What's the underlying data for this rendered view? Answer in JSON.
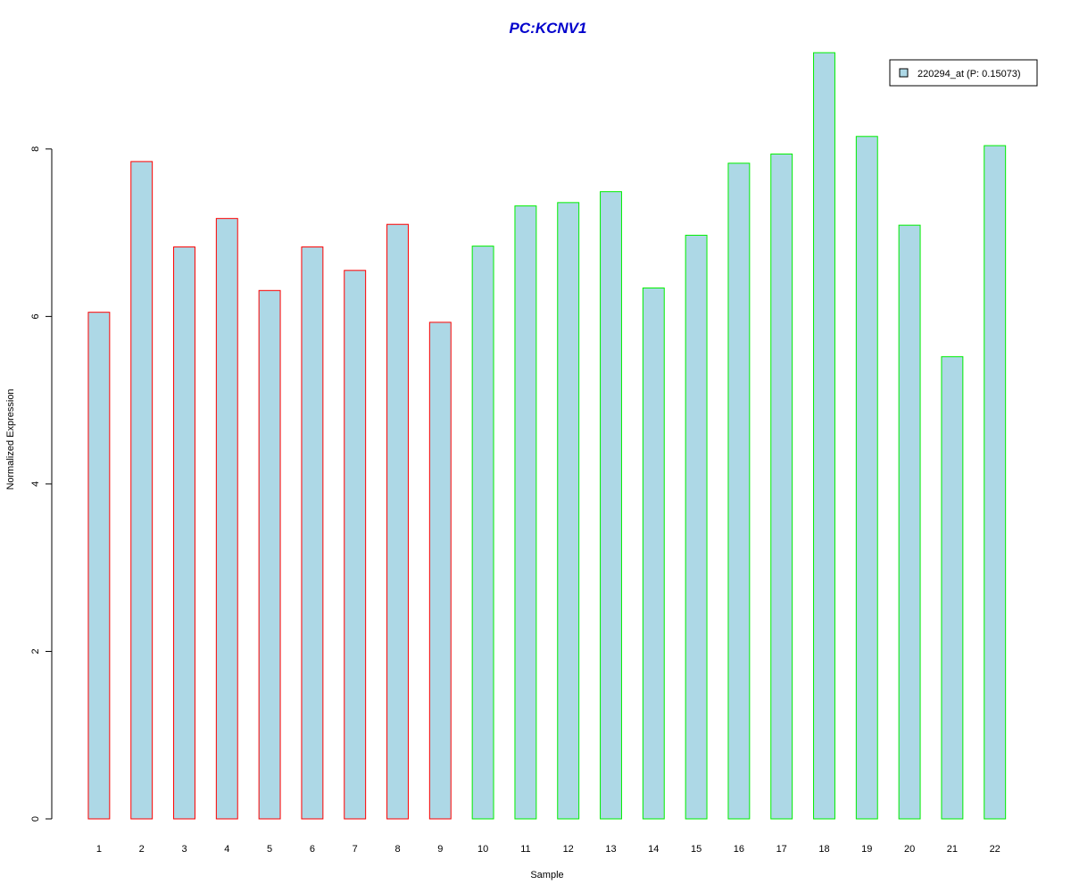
{
  "chart_data": {
    "type": "bar",
    "title": "PC:KCNV1",
    "title_color": "#0000CC",
    "xlabel": "Sample",
    "ylabel": "Normalized Expression",
    "categories": [
      "1",
      "2",
      "3",
      "4",
      "5",
      "6",
      "7",
      "8",
      "9",
      "10",
      "11",
      "12",
      "13",
      "14",
      "15",
      "16",
      "17",
      "18",
      "19",
      "20",
      "21",
      "22"
    ],
    "series": [
      {
        "name": "220294_at (P: 0.15073)",
        "values": [
          6.05,
          7.85,
          6.83,
          7.17,
          6.31,
          6.83,
          6.55,
          7.1,
          5.93,
          6.84,
          7.32,
          7.36,
          7.49,
          6.34,
          6.97,
          7.83,
          7.94,
          9.15,
          8.15,
          7.09,
          5.52,
          8.04
        ],
        "fill": "#ADD8E6"
      }
    ],
    "groups": [
      {
        "samples": [
          "1",
          "2",
          "3",
          "4",
          "5",
          "6",
          "7",
          "8",
          "9"
        ],
        "border_color": "#FF0000"
      },
      {
        "samples": [
          "10",
          "11",
          "12",
          "13",
          "14",
          "15",
          "16",
          "17",
          "18",
          "19",
          "20",
          "21",
          "22"
        ],
        "border_color": "#00EE00"
      }
    ],
    "yticks": [
      0,
      2,
      4,
      6,
      8
    ],
    "ylim": [
      0,
      9.15
    ],
    "grid": false,
    "legend_position": "top-right"
  }
}
